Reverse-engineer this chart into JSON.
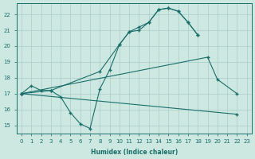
{
  "xlabel": "Humidex (Indice chaleur)",
  "background_color": "#cce8e0",
  "grid_color": "#aacccc",
  "line_color": "#1a6e6a",
  "xlim": [
    -0.5,
    23.5
  ],
  "ylim": [
    14.5,
    22.7
  ],
  "xticks": [
    0,
    1,
    2,
    3,
    4,
    5,
    6,
    7,
    8,
    9,
    10,
    11,
    12,
    13,
    14,
    15,
    16,
    17,
    18,
    19,
    20,
    21,
    22,
    23
  ],
  "yticks": [
    15,
    16,
    17,
    18,
    19,
    20,
    21,
    22
  ],
  "curves": [
    {
      "x": [
        0,
        1,
        2,
        3,
        4,
        5,
        6,
        7,
        8,
        9,
        10,
        11,
        12,
        13,
        14,
        15,
        16,
        17,
        18
      ],
      "y": [
        17.0,
        17.5,
        17.2,
        17.2,
        16.8,
        15.8,
        15.1,
        14.8,
        17.3,
        18.5,
        20.1,
        20.9,
        21.2,
        21.5,
        22.3,
        22.4,
        22.2,
        21.5,
        20.7
      ]
    },
    {
      "x": [
        0,
        3,
        8,
        10,
        11,
        12,
        13,
        14,
        15,
        16,
        17,
        18
      ],
      "y": [
        17.0,
        17.2,
        18.4,
        20.1,
        20.9,
        21.0,
        21.5,
        22.3,
        22.4,
        22.2,
        21.5,
        20.7
      ]
    },
    {
      "x": [
        0,
        19,
        20,
        22
      ],
      "y": [
        17.0,
        19.3,
        17.9,
        17.0
      ]
    },
    {
      "x": [
        0,
        22
      ],
      "y": [
        17.0,
        15.7
      ]
    }
  ]
}
